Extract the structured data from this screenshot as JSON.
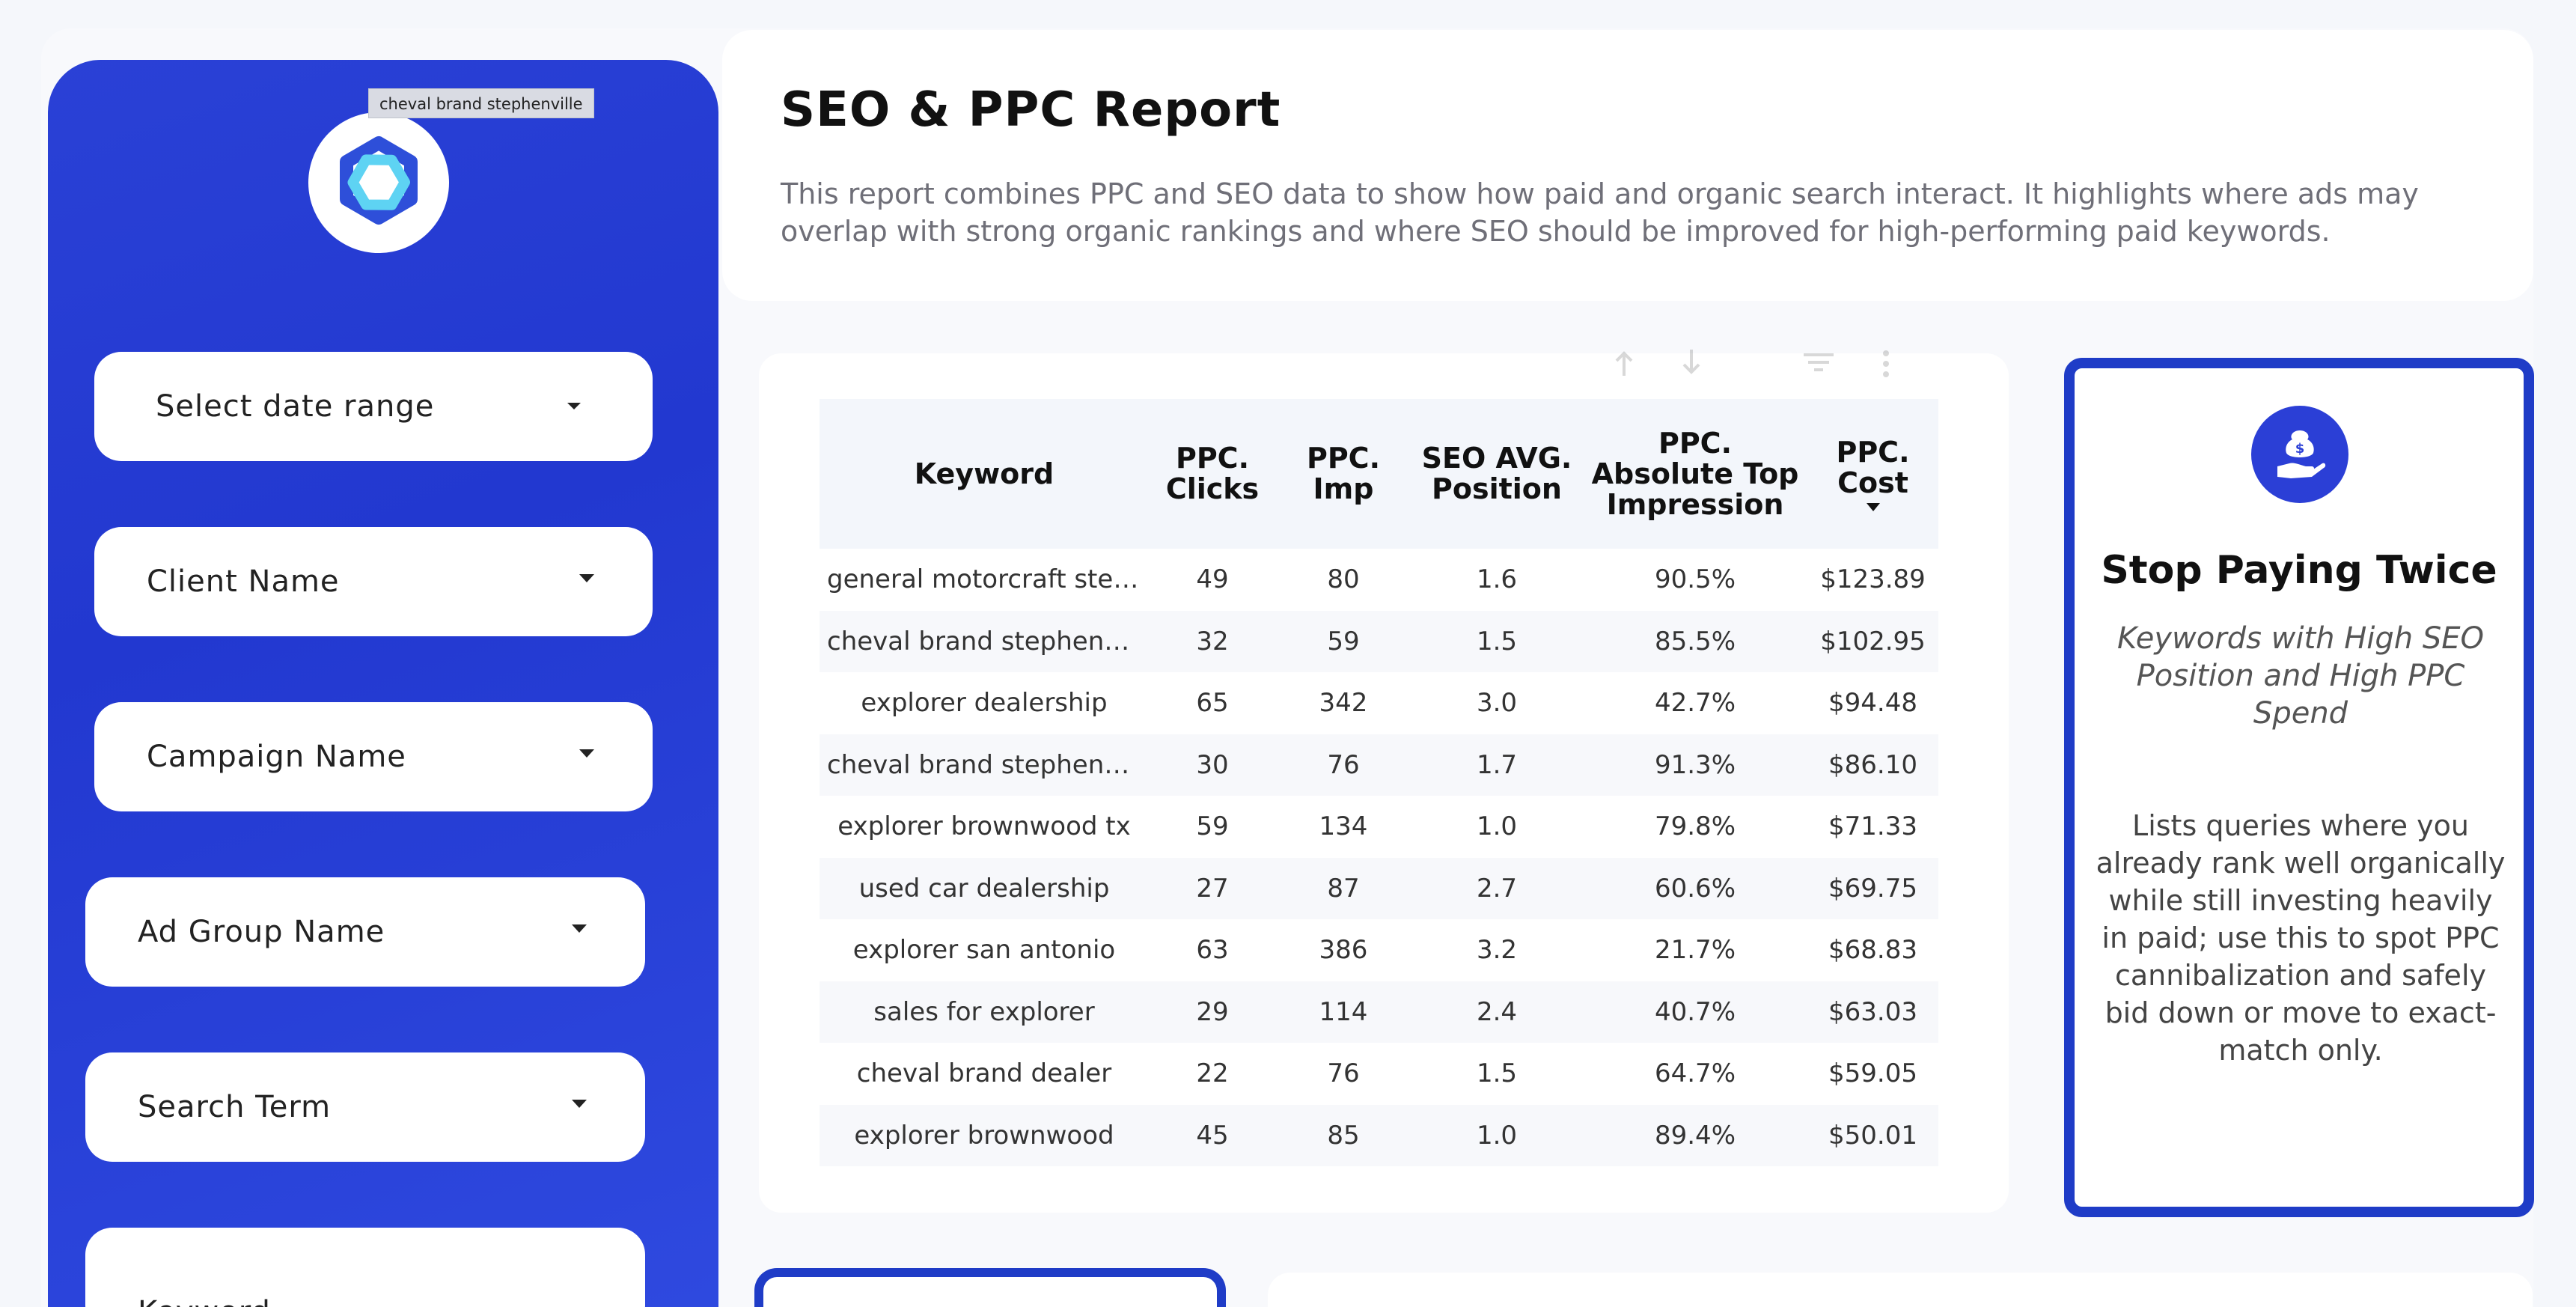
{
  "sidebar": {
    "tooltip": "cheval brand stephenville",
    "filters": {
      "date_range": "Select date range",
      "client_name": "Client Name",
      "campaign_name": "Campaign Name",
      "ad_group_name": "Ad Group Name",
      "search_term": "Search Term",
      "keyword": "Keyword"
    }
  },
  "header": {
    "title": "SEO & PPC Report",
    "description": "This report combines PPC and SEO data to show how paid and organic search interact. It highlights where ads may overlap with strong organic rankings and where SEO should be improved for high-performing paid keywords."
  },
  "table": {
    "columns": {
      "keyword": "Keyword",
      "ppc_clicks": "PPC. Clicks",
      "ppc_imp": "PPC. Imp",
      "seo_avg_position": "SEO AVG. Position",
      "ppc_abs_top": "PPC. Absolute Top Impression",
      "ppc_cost": "PPC. Cost"
    },
    "rows": [
      [
        "general motorcraft step...",
        "49",
        "80",
        "1.6",
        "90.5%",
        "$123.89"
      ],
      [
        "cheval brand stephenvil...",
        "32",
        "59",
        "1.5",
        "85.5%",
        "$102.95"
      ],
      [
        "explorer dealership",
        "65",
        "342",
        "3.0",
        "42.7%",
        "$94.48"
      ],
      [
        "cheval brand stephenvil...",
        "30",
        "76",
        "1.7",
        "91.3%",
        "$86.10"
      ],
      [
        "explorer brownwood tx",
        "59",
        "134",
        "1.0",
        "79.8%",
        "$71.33"
      ],
      [
        "used car dealership",
        "27",
        "87",
        "2.7",
        "60.6%",
        "$69.75"
      ],
      [
        "explorer san antonio",
        "63",
        "386",
        "3.2",
        "21.7%",
        "$68.83"
      ],
      [
        "sales for explorer",
        "29",
        "114",
        "2.4",
        "40.7%",
        "$63.03"
      ],
      [
        "cheval brand dealer",
        "22",
        "76",
        "1.5",
        "64.7%",
        "$59.05"
      ],
      [
        "explorer brownwood",
        "45",
        "85",
        "1.0",
        "89.4%",
        "$50.01"
      ]
    ]
  },
  "insight": {
    "icon": "money-hand-icon",
    "title": "Stop Paying Twice",
    "subtitle": "Keywords with High SEO Position and High PPC Spend",
    "body": "Lists queries where you already rank well organically while still investing heavily in paid; use this to spot PPC cannibalization and safely bid down or move to exact-match only."
  },
  "colors": {
    "sidebar": "#2a41d6",
    "accent_border": "#1f3cc7"
  }
}
